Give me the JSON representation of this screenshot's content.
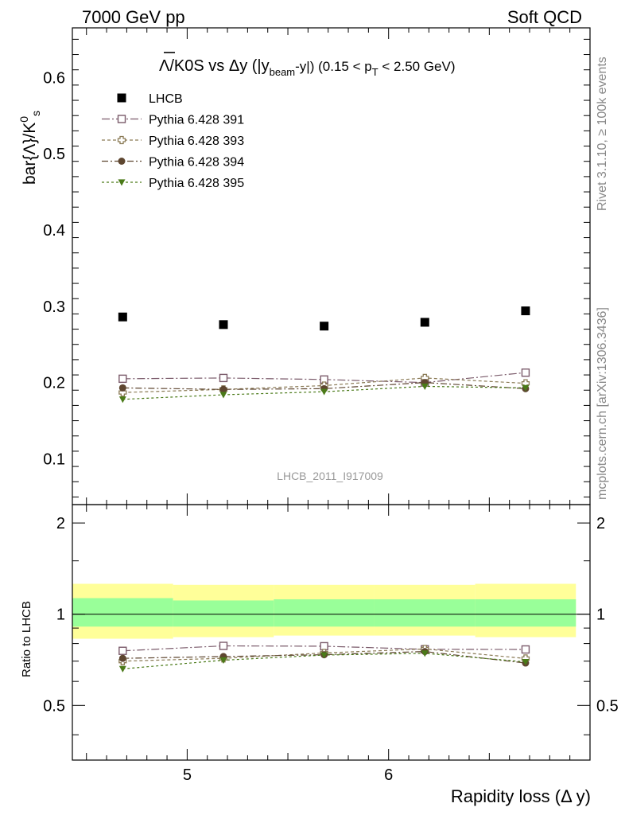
{
  "header": {
    "left": "7000 GeV pp",
    "right": "Soft QCD"
  },
  "side_labels": {
    "rivet": "Rivet 3.1.10, ≥ 100k events",
    "mcplots": "mcplots.cern.ch [arXiv:1306.3436]"
  },
  "watermark": "LHCB_2011_I917009",
  "chart_data": [
    {
      "panel": "main",
      "type": "scatter",
      "title": {
        "lead": "Λ/K0S vs Δy (|y",
        "beam_sub": "beam",
        "mid": "-y|) (0.15 < p",
        "t_sub": "T",
        "tail": " < 2.50 GeV)"
      },
      "ylabel": "bar{Λ}/K",
      "ylabel_sup": "0",
      "ylabel_sub": "s",
      "xlim": [
        4.43,
        7.0
      ],
      "ylim": [
        0.04,
        0.665
      ],
      "yticks": [
        {
          "v": 0.1,
          "label": "0.1"
        },
        {
          "v": 0.2,
          "label": "0.2"
        },
        {
          "v": 0.3,
          "label": "0.3"
        },
        {
          "v": 0.4,
          "label": "0.4"
        },
        {
          "v": 0.5,
          "label": "0.5"
        },
        {
          "v": 0.6,
          "label": "0.6"
        }
      ],
      "x": [
        4.68,
        5.18,
        5.68,
        6.18,
        6.68
      ],
      "series": [
        {
          "name": "LHCB",
          "marker": "filled-square",
          "color": "#000000",
          "line": false,
          "values": [
            0.286,
            0.276,
            0.274,
            0.279,
            0.294
          ]
        },
        {
          "name": "Pythia 6.428 391",
          "marker": "open-square",
          "color": "#7a5a6a",
          "line": true,
          "values": [
            0.205,
            0.206,
            0.204,
            0.2,
            0.213
          ]
        },
        {
          "name": "Pythia 6.428 393",
          "marker": "open-cross",
          "color": "#8a7a55",
          "line": true,
          "values": [
            0.187,
            0.191,
            0.196,
            0.206,
            0.199
          ]
        },
        {
          "name": "Pythia 6.428 394",
          "marker": "filled-circle",
          "color": "#5e4630",
          "line": true,
          "values": [
            0.193,
            0.191,
            0.192,
            0.2,
            0.192
          ]
        },
        {
          "name": "Pythia 6.428 395",
          "marker": "filled-triangle-down",
          "color": "#4a7a18",
          "line": true,
          "values": [
            0.178,
            0.184,
            0.188,
            0.195,
            0.193
          ]
        }
      ]
    },
    {
      "panel": "ratio",
      "type": "scatter",
      "ylabel": "Ratio to LHCB",
      "xlabel": "Rapidity loss (Δ y)",
      "xlim": [
        4.43,
        7.0
      ],
      "ylim": [
        0.33,
        2.3
      ],
      "log_y": true,
      "yticks": [
        {
          "v": 0.5,
          "label": "0.5"
        },
        {
          "v": 1,
          "label": "1"
        },
        {
          "v": 2,
          "label": "2"
        }
      ],
      "xticks": [
        {
          "v": 5,
          "label": "5"
        },
        {
          "v": 6,
          "label": "6"
        }
      ],
      "bands": [
        {
          "x0": 4.43,
          "x1": 4.93,
          "outer": [
            0.83,
            1.26
          ],
          "inner": [
            0.91,
            1.13
          ]
        },
        {
          "x0": 4.93,
          "x1": 5.43,
          "outer": [
            0.84,
            1.25
          ],
          "inner": [
            0.91,
            1.11
          ]
        },
        {
          "x0": 5.43,
          "x1": 5.93,
          "outer": [
            0.85,
            1.25
          ],
          "inner": [
            0.91,
            1.12
          ]
        },
        {
          "x0": 5.93,
          "x1": 6.43,
          "outer": [
            0.85,
            1.25
          ],
          "inner": [
            0.91,
            1.12
          ]
        },
        {
          "x0": 6.43,
          "x1": 6.93,
          "outer": [
            0.84,
            1.26
          ],
          "inner": [
            0.91,
            1.12
          ]
        }
      ],
      "x": [
        4.68,
        5.18,
        5.68,
        6.18,
        6.68
      ],
      "series": [
        {
          "name": "Pythia 6.428 391",
          "values": [
            0.757,
            0.786,
            0.784,
            0.766,
            0.765
          ]
        },
        {
          "name": "Pythia 6.428 393",
          "values": [
            0.7,
            0.715,
            0.745,
            0.768,
            0.714
          ]
        },
        {
          "name": "Pythia 6.428 394",
          "values": [
            0.715,
            0.725,
            0.735,
            0.753,
            0.69
          ]
        },
        {
          "name": "Pythia 6.428 395",
          "values": [
            0.66,
            0.705,
            0.733,
            0.743,
            0.696
          ]
        }
      ],
      "band_colors": {
        "outer": "#ffff99",
        "inner": "#99ff99"
      }
    }
  ]
}
